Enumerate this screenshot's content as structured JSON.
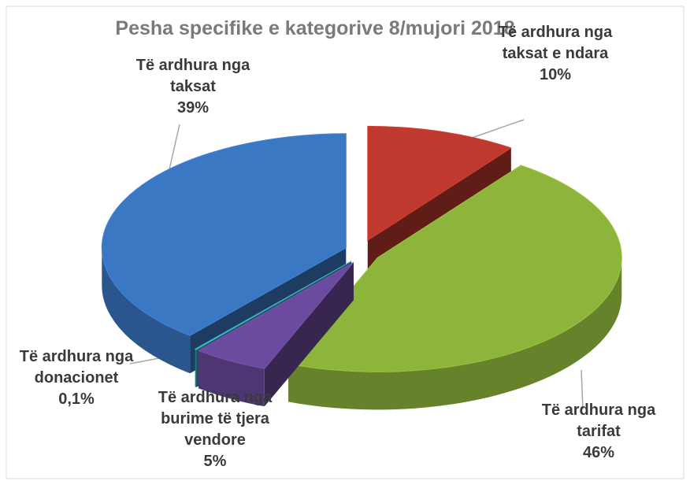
{
  "chart_data": {
    "type": "pie3d",
    "title": "Pesha specifike e kategorive 8/mujori 2018",
    "categories": [
      "Të ardhura nga taksat e ndara",
      "Të ardhura nga tarifat",
      "Të ardhura nga burime të tjera vendore",
      "Të ardhura nga donacionet",
      "Të ardhura nga taksat"
    ],
    "values": [
      10,
      46,
      5,
      0.1,
      39
    ],
    "value_labels": [
      "10%",
      "46%",
      "5%",
      "0,1%",
      "39%"
    ],
    "colors": [
      "#c0392f",
      "#8db43b",
      "#6b4b9f",
      "#3aa3b8",
      "#3b78c4"
    ]
  }
}
